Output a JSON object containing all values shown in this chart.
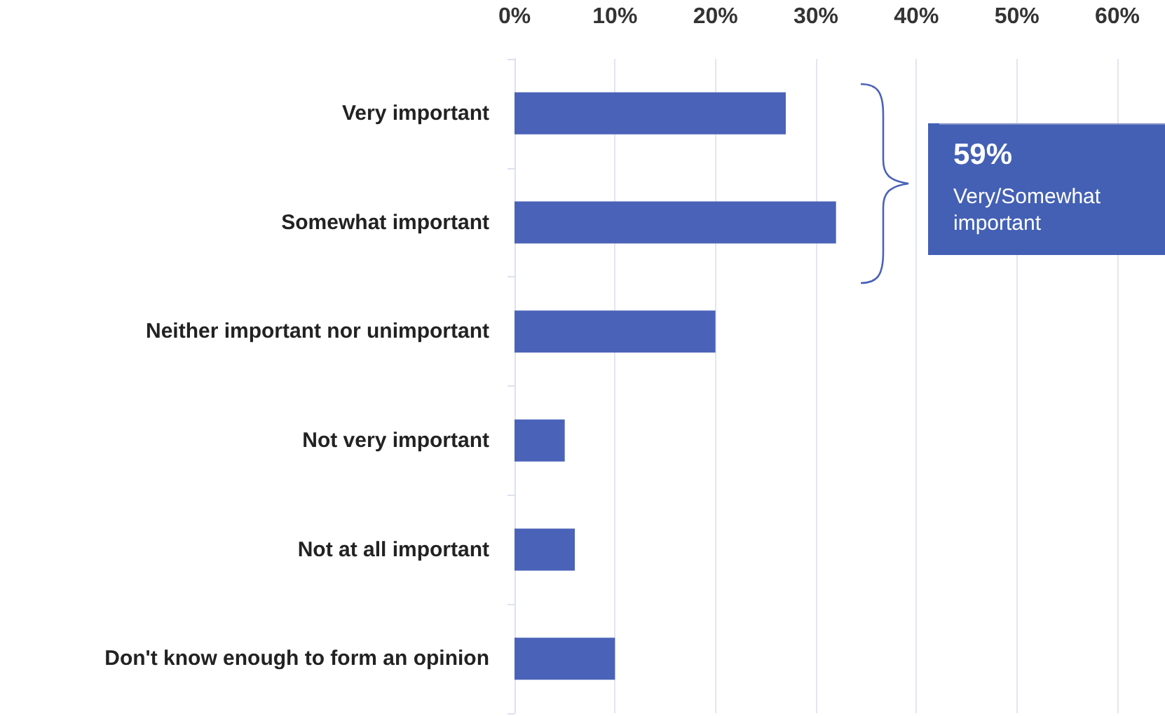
{
  "chart_data": {
    "type": "bar",
    "orientation": "horizontal",
    "categories": [
      "Very important",
      "Somewhat important",
      "Neither important nor unimportant",
      "Not very important",
      "Not at all important",
      "Don't know enough to form an opinion"
    ],
    "values": [
      27,
      32,
      20,
      5,
      6,
      10
    ],
    "color": "#4a62b8",
    "xlim": [
      0,
      60
    ],
    "xticks": [
      {
        "value": 0,
        "label": "0%"
      },
      {
        "value": 10,
        "label": "10%"
      },
      {
        "value": 20,
        "label": "20%"
      },
      {
        "value": 30,
        "label": "30%"
      },
      {
        "value": 40,
        "label": "40%"
      },
      {
        "value": 50,
        "label": "50%"
      },
      {
        "value": 60,
        "label": "60%"
      }
    ],
    "grid": "x",
    "annotations": [
      "59%",
      "Very/Somewhat important"
    ]
  }
}
